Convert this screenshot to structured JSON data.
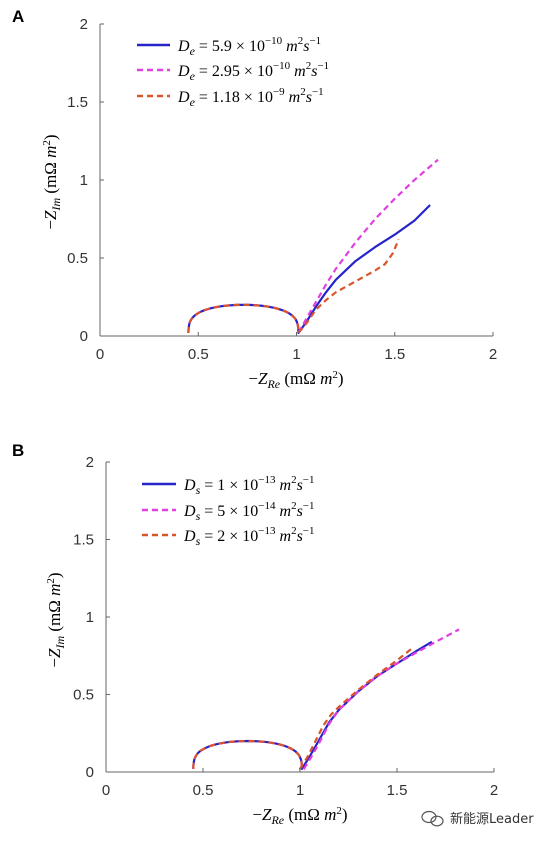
{
  "watermark": {
    "text": "新能源Leader",
    "icon": "wechat-icon"
  },
  "chart_data": [
    {
      "panel": "A",
      "type": "line",
      "xlabel": "−Z_Re (mΩ m²)",
      "ylabel": "−Z_Im (mΩ m²)",
      "xlim": [
        0,
        2
      ],
      "ylim": [
        0,
        2
      ],
      "xticks": [
        "0",
        "0.5",
        "1",
        "1.5",
        "2"
      ],
      "yticks": [
        "0",
        "0.5",
        "1",
        "1.5",
        "2"
      ],
      "grid": false,
      "legend_position": "top-left",
      "series": [
        {
          "name": "D_e = 5.9 × 10^−10 m²s^−1",
          "color": "#2424c8",
          "dash": "solid",
          "x": [
            1.01,
            1.05,
            1.1,
            1.15,
            1.2,
            1.3,
            1.4,
            1.5,
            1.6,
            1.68
          ],
          "y": [
            0.02,
            0.09,
            0.19,
            0.28,
            0.36,
            0.48,
            0.57,
            0.65,
            0.74,
            0.84
          ]
        },
        {
          "name": "D_e = 2.95 × 10^−10 m²s^−1",
          "color": "#e040e0",
          "dash": "dashed",
          "x": [
            1.01,
            1.05,
            1.1,
            1.15,
            1.2,
            1.3,
            1.4,
            1.5,
            1.6,
            1.72
          ],
          "y": [
            0.02,
            0.11,
            0.22,
            0.33,
            0.43,
            0.6,
            0.75,
            0.88,
            1.0,
            1.13
          ]
        },
        {
          "name": "D_e = 1.18 × 10^−9 m²s^−1",
          "color": "#d9552a",
          "dash": "dashed",
          "x": [
            1.01,
            1.05,
            1.1,
            1.15,
            1.2,
            1.3,
            1.4,
            1.45,
            1.49,
            1.52
          ],
          "y": [
            0.02,
            0.08,
            0.17,
            0.23,
            0.28,
            0.35,
            0.42,
            0.46,
            0.53,
            0.62
          ]
        }
      ]
    },
    {
      "panel": "B",
      "type": "line",
      "xlabel": "−Z_Re (mΩ m²)",
      "ylabel": "−Z_Im (mΩ m²)",
      "xlim": [
        0,
        2
      ],
      "ylim": [
        0,
        2
      ],
      "xticks": [
        "0",
        "0.5",
        "1",
        "1.5",
        "2"
      ],
      "yticks": [
        "0",
        "0.5",
        "1",
        "1.5",
        "2"
      ],
      "grid": false,
      "legend_position": "top-left",
      "series": [
        {
          "name": "D_s = 1 × 10^−13 m²s^−1",
          "color": "#2424c8",
          "dash": "solid",
          "x": [
            1.01,
            1.05,
            1.1,
            1.15,
            1.2,
            1.3,
            1.4,
            1.5,
            1.6,
            1.68
          ],
          "y": [
            0.02,
            0.1,
            0.21,
            0.32,
            0.4,
            0.52,
            0.62,
            0.7,
            0.78,
            0.84
          ]
        },
        {
          "name": "D_s = 5 × 10^−14 m²s^−1",
          "color": "#e040e0",
          "dash": "dashed",
          "x": [
            1.02,
            1.06,
            1.1,
            1.15,
            1.2,
            1.3,
            1.4,
            1.5,
            1.6,
            1.7,
            1.82
          ],
          "y": [
            0.02,
            0.1,
            0.19,
            0.31,
            0.4,
            0.52,
            0.62,
            0.7,
            0.77,
            0.84,
            0.92
          ]
        },
        {
          "name": "D_s = 2 × 10^−13 m²s^−1",
          "color": "#d9552a",
          "dash": "dashed",
          "x": [
            1.0,
            1.04,
            1.08,
            1.12,
            1.16,
            1.2,
            1.3,
            1.4,
            1.5,
            1.58
          ],
          "y": [
            0.02,
            0.1,
            0.2,
            0.3,
            0.37,
            0.42,
            0.53,
            0.63,
            0.72,
            0.8
          ]
        }
      ]
    }
  ]
}
